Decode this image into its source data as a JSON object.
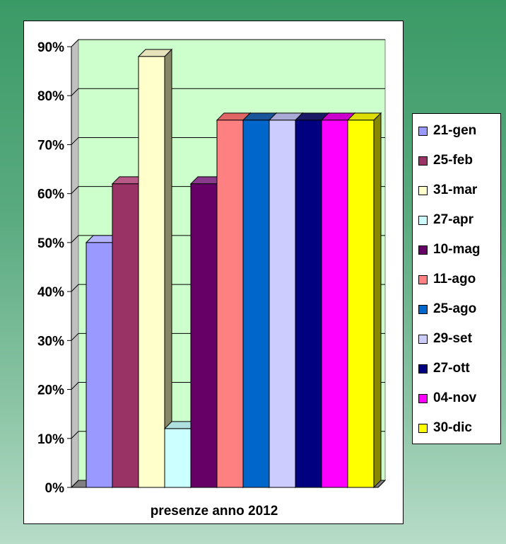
{
  "chart_data": {
    "type": "bar",
    "xlabel": "presenze anno 2012",
    "ylabel": "",
    "ylim": [
      0,
      90
    ],
    "y_ticks": [
      "0%",
      "10%",
      "20%",
      "30%",
      "40%",
      "50%",
      "60%",
      "70%",
      "80%",
      "90%"
    ],
    "grid": true,
    "legend_position": "right",
    "categories": [
      "presenze anno 2012"
    ],
    "series": [
      {
        "name": "21-gen",
        "value": 50,
        "color": "#9999FF",
        "top": "#b3b3ff",
        "side": "#7777cc"
      },
      {
        "name": "25-feb",
        "value": 62,
        "color": "#993366",
        "top": "#b85a88",
        "side": "#6e2449"
      },
      {
        "name": "31-mar",
        "value": 88,
        "color": "#FFFFCC",
        "top": "#e6e2bb",
        "side": "#888866"
      },
      {
        "name": "27-apr",
        "value": 12,
        "color": "#CCFFFF",
        "top": "#aee0e0",
        "side": "#88aaaa"
      },
      {
        "name": "10-mag",
        "value": 62,
        "color": "#660066",
        "top": "#8a3a8a",
        "side": "#440044"
      },
      {
        "name": "11-ago",
        "value": 75,
        "color": "#FF8080",
        "top": "#e06666",
        "side": "#aa5555"
      },
      {
        "name": "25-ago",
        "value": 75,
        "color": "#0066CC",
        "top": "#1a5599",
        "side": "#004488"
      },
      {
        "name": "29-set",
        "value": 75,
        "color": "#CCCCFF",
        "top": "#a9a9d6",
        "side": "#8888aa"
      },
      {
        "name": "27-ott",
        "value": 75,
        "color": "#000080",
        "top": "#1a1a66",
        "side": "#000055"
      },
      {
        "name": "04-nov",
        "value": 75,
        "color": "#FF00FF",
        "top": "#cc00cc",
        "side": "#aa00aa"
      },
      {
        "name": "30-dic",
        "value": 75,
        "color": "#FFFF00",
        "top": "#dddd00",
        "side": "#888800"
      }
    ]
  }
}
